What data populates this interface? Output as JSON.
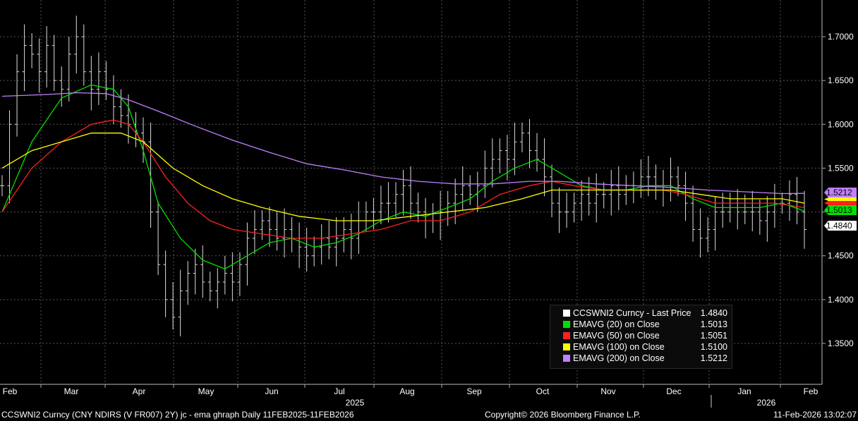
{
  "chart_data": {
    "type": "line",
    "title": "",
    "xlabel": "",
    "ylabel": "",
    "ylim": [
      1.3,
      1.73
    ],
    "y_ticks": [
      "1.7000",
      "1.6500",
      "1.6000",
      "1.5500",
      "1.5000",
      "1.4500",
      "1.4000",
      "1.3500"
    ],
    "x_ticks": [
      "Feb",
      "Mar",
      "Apr",
      "May",
      "Jun",
      "Jul",
      "Aug",
      "Sep",
      "Oct",
      "Nov",
      "Dec",
      "Jan",
      "Feb"
    ],
    "year_labels": [
      "2025",
      "2026"
    ],
    "grid": true,
    "legend_position": "bottom-right",
    "colors": {
      "price": "#ffffff",
      "ema20": "#00e000",
      "ema50": "#ff2020",
      "ema100": "#ffff00",
      "ema200": "#c080ff"
    },
    "series": [
      {
        "name": "CCSWNI2 Curncy - Last Price",
        "last": "1.4840",
        "key": "price",
        "values": [
          [
            0,
            1.53
          ],
          [
            1,
            1.6
          ],
          [
            2,
            1.66
          ],
          [
            3,
            1.69
          ],
          [
            4,
            1.68
          ],
          [
            5,
            1.66
          ],
          [
            6,
            1.69
          ],
          [
            7,
            1.65
          ],
          [
            8,
            1.64
          ],
          [
            9,
            1.68
          ],
          [
            10,
            1.7
          ],
          [
            11,
            1.66
          ],
          [
            12,
            1.64
          ],
          [
            13,
            1.66
          ],
          [
            14,
            1.64
          ],
          [
            15,
            1.62
          ],
          [
            16,
            1.61
          ],
          [
            17,
            1.6
          ],
          [
            18,
            1.59
          ],
          [
            19,
            1.58
          ],
          [
            20,
            1.5
          ],
          [
            21,
            1.44
          ],
          [
            22,
            1.4
          ],
          [
            23,
            1.38
          ],
          [
            24,
            1.41
          ],
          [
            25,
            1.43
          ],
          [
            26,
            1.44
          ],
          [
            27,
            1.42
          ],
          [
            28,
            1.41
          ],
          [
            29,
            1.42
          ],
          [
            30,
            1.43
          ],
          [
            31,
            1.42
          ],
          [
            32,
            1.44
          ],
          [
            33,
            1.47
          ],
          [
            34,
            1.48
          ],
          [
            35,
            1.49
          ],
          [
            36,
            1.48
          ],
          [
            37,
            1.47
          ],
          [
            38,
            1.48
          ],
          [
            39,
            1.47
          ],
          [
            40,
            1.46
          ],
          [
            41,
            1.45
          ],
          [
            42,
            1.46
          ],
          [
            43,
            1.47
          ],
          [
            44,
            1.46
          ],
          [
            45,
            1.47
          ],
          [
            46,
            1.48
          ],
          [
            47,
            1.47
          ],
          [
            48,
            1.49
          ],
          [
            49,
            1.5
          ],
          [
            50,
            1.5
          ],
          [
            51,
            1.51
          ],
          [
            52,
            1.51
          ],
          [
            53,
            1.52
          ],
          [
            54,
            1.53
          ],
          [
            55,
            1.51
          ],
          [
            56,
            1.5
          ],
          [
            57,
            1.49
          ],
          [
            58,
            1.49
          ],
          [
            59,
            1.5
          ],
          [
            60,
            1.51
          ],
          [
            61,
            1.52
          ],
          [
            62,
            1.53
          ],
          [
            63,
            1.52
          ],
          [
            64,
            1.53
          ],
          [
            65,
            1.55
          ],
          [
            66,
            1.56
          ],
          [
            67,
            1.57
          ],
          [
            68,
            1.56
          ],
          [
            69,
            1.58
          ],
          [
            70,
            1.59
          ],
          [
            71,
            1.57
          ],
          [
            72,
            1.56
          ],
          [
            73,
            1.54
          ],
          [
            74,
            1.51
          ],
          [
            75,
            1.5
          ],
          [
            76,
            1.5
          ],
          [
            77,
            1.51
          ],
          [
            78,
            1.52
          ],
          [
            79,
            1.51
          ],
          [
            80,
            1.52
          ],
          [
            81,
            1.52
          ],
          [
            82,
            1.53
          ],
          [
            83,
            1.52
          ],
          [
            84,
            1.53
          ],
          [
            85,
            1.53
          ],
          [
            86,
            1.54
          ],
          [
            87,
            1.54
          ],
          [
            88,
            1.53
          ],
          [
            89,
            1.53
          ],
          [
            90,
            1.54
          ],
          [
            91,
            1.53
          ],
          [
            92,
            1.51
          ],
          [
            93,
            1.48
          ],
          [
            94,
            1.47
          ],
          [
            95,
            1.48
          ],
          [
            96,
            1.5
          ],
          [
            97,
            1.5
          ],
          [
            98,
            1.51
          ],
          [
            99,
            1.5
          ],
          [
            100,
            1.5
          ],
          [
            101,
            1.5
          ],
          [
            102,
            1.49
          ],
          [
            103,
            1.5
          ],
          [
            104,
            1.51
          ],
          [
            105,
            1.51
          ],
          [
            106,
            1.52
          ],
          [
            107,
            1.5
          ],
          [
            108,
            1.48
          ]
        ]
      },
      {
        "name": "EMAVG (20)  on Close",
        "last": "1.5013",
        "key": "ema20",
        "values": [
          [
            0,
            1.5
          ],
          [
            4,
            1.58
          ],
          [
            8,
            1.63
          ],
          [
            12,
            1.645
          ],
          [
            15,
            1.64
          ],
          [
            17,
            1.62
          ],
          [
            19,
            1.57
          ],
          [
            21,
            1.51
          ],
          [
            24,
            1.47
          ],
          [
            27,
            1.445
          ],
          [
            30,
            1.435
          ],
          [
            33,
            1.45
          ],
          [
            36,
            1.465
          ],
          [
            39,
            1.47
          ],
          [
            42,
            1.46
          ],
          [
            45,
            1.465
          ],
          [
            48,
            1.475
          ],
          [
            51,
            1.49
          ],
          [
            54,
            1.5
          ],
          [
            57,
            1.495
          ],
          [
            60,
            1.505
          ],
          [
            63,
            1.515
          ],
          [
            66,
            1.535
          ],
          [
            69,
            1.55
          ],
          [
            72,
            1.56
          ],
          [
            75,
            1.545
          ],
          [
            78,
            1.53
          ],
          [
            81,
            1.525
          ],
          [
            84,
            1.525
          ],
          [
            87,
            1.53
          ],
          [
            90,
            1.53
          ],
          [
            93,
            1.515
          ],
          [
            96,
            1.505
          ],
          [
            99,
            1.505
          ],
          [
            102,
            1.505
          ],
          [
            105,
            1.51
          ],
          [
            108,
            1.501
          ]
        ]
      },
      {
        "name": "EMAVG (50)  on Close",
        "last": "1.5051",
        "key": "ema50",
        "values": [
          [
            0,
            1.5
          ],
          [
            4,
            1.55
          ],
          [
            8,
            1.58
          ],
          [
            12,
            1.6
          ],
          [
            15,
            1.605
          ],
          [
            17,
            1.6
          ],
          [
            19,
            1.58
          ],
          [
            22,
            1.54
          ],
          [
            25,
            1.51
          ],
          [
            28,
            1.49
          ],
          [
            31,
            1.48
          ],
          [
            35,
            1.475
          ],
          [
            39,
            1.47
          ],
          [
            43,
            1.47
          ],
          [
            47,
            1.475
          ],
          [
            51,
            1.48
          ],
          [
            55,
            1.49
          ],
          [
            59,
            1.49
          ],
          [
            63,
            1.5
          ],
          [
            67,
            1.52
          ],
          [
            71,
            1.53
          ],
          [
            74,
            1.535
          ],
          [
            77,
            1.53
          ],
          [
            81,
            1.525
          ],
          [
            85,
            1.525
          ],
          [
            89,
            1.525
          ],
          [
            92,
            1.52
          ],
          [
            96,
            1.51
          ],
          [
            100,
            1.51
          ],
          [
            104,
            1.51
          ],
          [
            108,
            1.505
          ]
        ]
      },
      {
        "name": "EMAVG (100)  on Close",
        "last": "1.5100",
        "key": "ema100",
        "values": [
          [
            0,
            1.55
          ],
          [
            4,
            1.57
          ],
          [
            8,
            1.58
          ],
          [
            12,
            1.59
          ],
          [
            16,
            1.59
          ],
          [
            19,
            1.58
          ],
          [
            23,
            1.55
          ],
          [
            27,
            1.53
          ],
          [
            31,
            1.515
          ],
          [
            35,
            1.505
          ],
          [
            40,
            1.495
          ],
          [
            45,
            1.49
          ],
          [
            50,
            1.49
          ],
          [
            55,
            1.495
          ],
          [
            60,
            1.5
          ],
          [
            65,
            1.505
          ],
          [
            70,
            1.515
          ],
          [
            74,
            1.525
          ],
          [
            78,
            1.525
          ],
          [
            82,
            1.525
          ],
          [
            86,
            1.525
          ],
          [
            90,
            1.525
          ],
          [
            94,
            1.52
          ],
          [
            98,
            1.515
          ],
          [
            102,
            1.515
          ],
          [
            105,
            1.515
          ],
          [
            108,
            1.51
          ]
        ]
      },
      {
        "name": "EMAVG (200)  on Close",
        "last": "1.5212",
        "key": "ema200",
        "values": [
          [
            0,
            1.632
          ],
          [
            6,
            1.634
          ],
          [
            10,
            1.636
          ],
          [
            14,
            1.635
          ],
          [
            17,
            1.628
          ],
          [
            21,
            1.615
          ],
          [
            26,
            1.598
          ],
          [
            31,
            1.582
          ],
          [
            36,
            1.568
          ],
          [
            41,
            1.555
          ],
          [
            46,
            1.548
          ],
          [
            51,
            1.54
          ],
          [
            56,
            1.535
          ],
          [
            61,
            1.532
          ],
          [
            66,
            1.532
          ],
          [
            71,
            1.535
          ],
          [
            75,
            1.535
          ],
          [
            80,
            1.532
          ],
          [
            85,
            1.53
          ],
          [
            90,
            1.528
          ],
          [
            95,
            1.525
          ],
          [
            100,
            1.523
          ],
          [
            105,
            1.521
          ],
          [
            108,
            1.5212
          ]
        ]
      }
    ]
  },
  "footer": {
    "left": "CCSWNI2 Curncy (CNY NDIRS (V FR007) 2Y) jc - ema ghraph Daily 11FEB2025-11FEB2026",
    "center": "Copyright© 2026 Bloomberg Finance L.P.",
    "right": "11-Feb-2026 13:02:07"
  },
  "badges": [
    "1.5212",
    "1.5013",
    "1.4840"
  ]
}
